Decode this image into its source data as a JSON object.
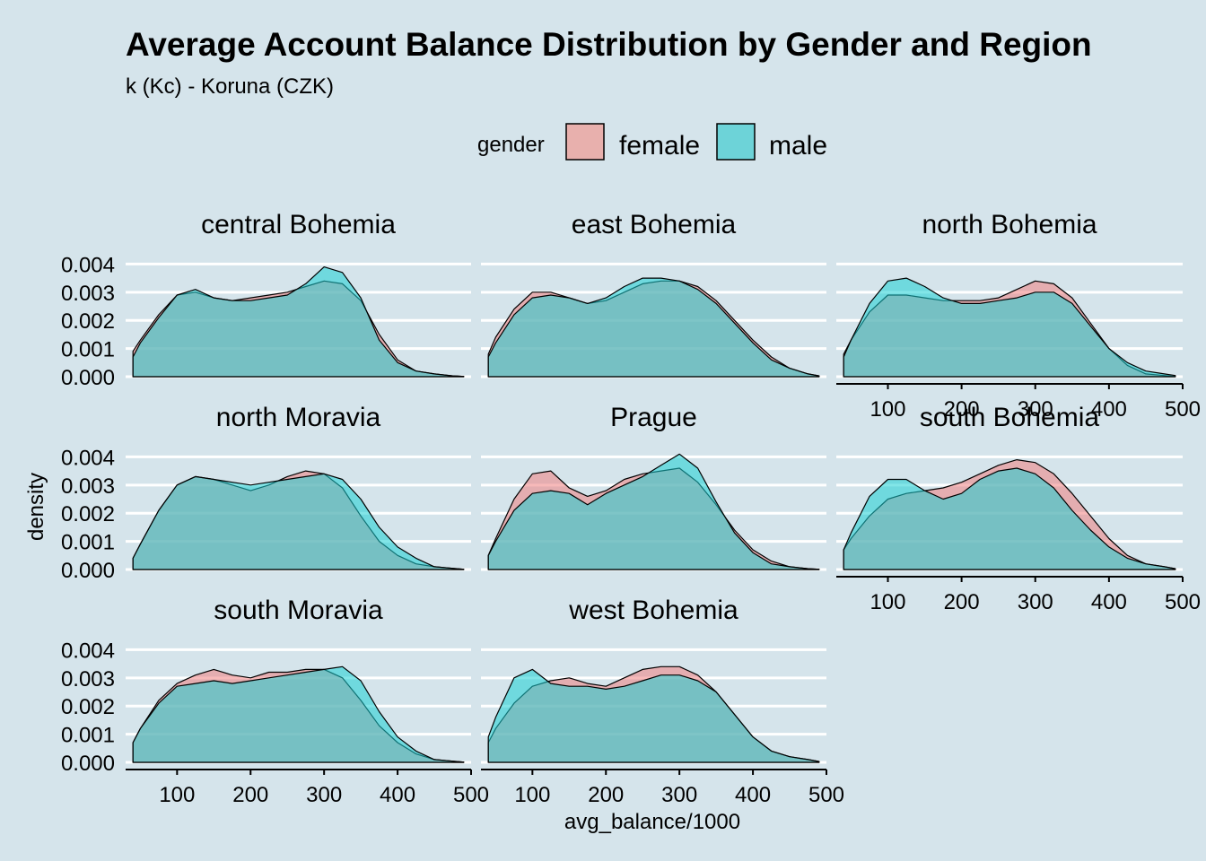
{
  "chart_data": {
    "type": "area",
    "title": "Average Account Balance Distribution by Gender and Region",
    "subtitle": "k (Kc) - Koruna (CZK)",
    "xlabel": "avg_balance/1000",
    "ylabel": "density",
    "legend": {
      "title": "gender",
      "position": "top",
      "entries": [
        {
          "label": "female",
          "color": "#e8b0ad"
        },
        {
          "label": "male",
          "color": "#6dd3d8"
        }
      ]
    },
    "xlim": [
      30,
      500
    ],
    "ylim": [
      0,
      0.0043
    ],
    "x_ticks": [
      100,
      200,
      300,
      400,
      500
    ],
    "y_ticks": [
      0,
      0.001,
      0.002,
      0.003,
      0.004
    ],
    "y_tick_labels": [
      "0.000",
      "0.001",
      "0.002",
      "0.003",
      "0.004"
    ],
    "grid": "horizontal major lines",
    "colors": {
      "background": "#d5e4eb",
      "female_fill": "#f08080",
      "male_fill": "#1ccfd4",
      "overlap_fill": "#6fb3b3",
      "grid": "#ffffff",
      "outline": "#000000"
    },
    "x": [
      40,
      50,
      75,
      100,
      125,
      150,
      175,
      200,
      225,
      250,
      275,
      300,
      325,
      350,
      375,
      400,
      425,
      450,
      475,
      490
    ],
    "panels": [
      {
        "region": "central Bohemia",
        "series": [
          {
            "name": "female",
            "values": [
              0.0009,
              0.0013,
              0.0022,
              0.0029,
              0.003,
              0.0028,
              0.0027,
              0.0028,
              0.0029,
              0.003,
              0.0032,
              0.0034,
              0.0033,
              0.0027,
              0.0015,
              0.0006,
              0.0002,
              0.0001,
              3e-05,
              1e-05
            ]
          },
          {
            "name": "male",
            "values": [
              0.0007,
              0.0012,
              0.0021,
              0.0029,
              0.0031,
              0.0028,
              0.0027,
              0.0027,
              0.0028,
              0.0029,
              0.0033,
              0.0039,
              0.0037,
              0.0028,
              0.0013,
              0.0005,
              0.0002,
              0.0001,
              3e-05,
              1e-05
            ]
          }
        ]
      },
      {
        "region": "east Bohemia",
        "series": [
          {
            "name": "female",
            "values": [
              0.0008,
              0.0014,
              0.0024,
              0.003,
              0.003,
              0.0028,
              0.0026,
              0.0027,
              0.003,
              0.0033,
              0.0034,
              0.0034,
              0.0032,
              0.0027,
              0.002,
              0.0013,
              0.0007,
              0.0003,
              0.0001,
              3e-05
            ]
          },
          {
            "name": "male",
            "values": [
              0.0007,
              0.0012,
              0.0022,
              0.0028,
              0.0029,
              0.0028,
              0.0026,
              0.0028,
              0.0032,
              0.0035,
              0.0035,
              0.0034,
              0.0031,
              0.0026,
              0.0019,
              0.0012,
              0.0006,
              0.0003,
              0.0001,
              3e-05
            ]
          }
        ]
      },
      {
        "region": "north Bohemia",
        "series": [
          {
            "name": "female",
            "values": [
              0.0008,
              0.0013,
              0.0023,
              0.0029,
              0.0029,
              0.0028,
              0.0027,
              0.0027,
              0.0027,
              0.0028,
              0.0031,
              0.0034,
              0.0033,
              0.0028,
              0.0019,
              0.001,
              0.0004,
              0.0001,
              4e-05,
              1e-05
            ]
          },
          {
            "name": "male",
            "values": [
              0.0007,
              0.0013,
              0.0026,
              0.0034,
              0.0035,
              0.0032,
              0.0028,
              0.0026,
              0.0026,
              0.0027,
              0.0028,
              0.003,
              0.003,
              0.0026,
              0.0018,
              0.001,
              0.0005,
              0.0002,
              0.0001,
              4e-05
            ]
          }
        ]
      },
      {
        "region": "north Moravia",
        "series": [
          {
            "name": "female",
            "values": [
              0.0004,
              0.0009,
              0.0021,
              0.003,
              0.0033,
              0.0032,
              0.003,
              0.0028,
              0.003,
              0.0033,
              0.0035,
              0.0034,
              0.0029,
              0.0019,
              0.001,
              0.0005,
              0.0002,
              0.0001,
              4e-05,
              1e-05
            ]
          },
          {
            "name": "male",
            "values": [
              0.0004,
              0.0009,
              0.0021,
              0.003,
              0.0033,
              0.0032,
              0.0031,
              0.003,
              0.0031,
              0.0032,
              0.0033,
              0.0034,
              0.0032,
              0.0025,
              0.0015,
              0.0008,
              0.0004,
              0.0001,
              4e-05,
              1e-05
            ]
          }
        ]
      },
      {
        "region": "Prague",
        "series": [
          {
            "name": "female",
            "values": [
              0.0005,
              0.0011,
              0.0025,
              0.0034,
              0.0035,
              0.0029,
              0.0026,
              0.0028,
              0.0032,
              0.0034,
              0.0035,
              0.0036,
              0.0031,
              0.0023,
              0.0014,
              0.0007,
              0.0003,
              0.0001,
              3e-05,
              1e-05
            ]
          },
          {
            "name": "male",
            "values": [
              0.0005,
              0.001,
              0.0021,
              0.0027,
              0.0028,
              0.0027,
              0.0023,
              0.0027,
              0.003,
              0.0033,
              0.0037,
              0.0041,
              0.0036,
              0.0024,
              0.0013,
              0.0006,
              0.0002,
              0.0001,
              3e-05,
              1e-05
            ]
          }
        ]
      },
      {
        "region": "south Bohemia",
        "series": [
          {
            "name": "female",
            "values": [
              0.0007,
              0.0011,
              0.0019,
              0.0025,
              0.0027,
              0.0028,
              0.0029,
              0.0031,
              0.0034,
              0.0037,
              0.0039,
              0.0038,
              0.0034,
              0.0027,
              0.0019,
              0.0011,
              0.0005,
              0.0002,
              0.0001,
              3e-05
            ]
          },
          {
            "name": "male",
            "values": [
              0.0007,
              0.0013,
              0.0026,
              0.0032,
              0.0032,
              0.0028,
              0.0025,
              0.0027,
              0.0032,
              0.0035,
              0.0036,
              0.0034,
              0.0029,
              0.0021,
              0.0014,
              0.0008,
              0.0004,
              0.0002,
              0.0001,
              3e-05
            ]
          }
        ]
      },
      {
        "region": "south Moravia",
        "series": [
          {
            "name": "female",
            "values": [
              0.0007,
              0.0012,
              0.0022,
              0.0028,
              0.0031,
              0.0033,
              0.0031,
              0.003,
              0.0032,
              0.0032,
              0.0033,
              0.0033,
              0.003,
              0.0022,
              0.0013,
              0.0007,
              0.0003,
              0.0001,
              4e-05,
              1e-05
            ]
          },
          {
            "name": "male",
            "values": [
              0.0007,
              0.0012,
              0.0021,
              0.0027,
              0.0028,
              0.0029,
              0.0028,
              0.0029,
              0.003,
              0.0031,
              0.0032,
              0.0033,
              0.0034,
              0.0029,
              0.0018,
              0.0009,
              0.0004,
              0.0001,
              4e-05,
              1e-05
            ]
          }
        ]
      },
      {
        "region": "west Bohemia",
        "series": [
          {
            "name": "female",
            "values": [
              0.0007,
              0.0012,
              0.0021,
              0.0027,
              0.0029,
              0.003,
              0.0028,
              0.0027,
              0.003,
              0.0033,
              0.0034,
              0.0034,
              0.0031,
              0.0025,
              0.0017,
              0.0009,
              0.0004,
              0.0002,
              0.0001,
              3e-05
            ]
          },
          {
            "name": "male",
            "values": [
              0.0009,
              0.0016,
              0.003,
              0.0033,
              0.0028,
              0.0027,
              0.0027,
              0.0026,
              0.0027,
              0.0029,
              0.0031,
              0.0031,
              0.0029,
              0.0025,
              0.0017,
              0.0009,
              0.0004,
              0.0002,
              0.0001,
              3e-05
            ]
          }
        ]
      }
    ]
  }
}
